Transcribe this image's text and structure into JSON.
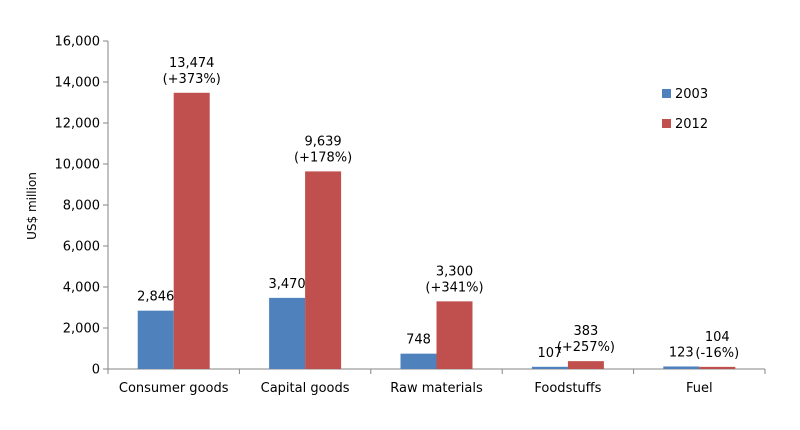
{
  "chart_data": {
    "type": "bar",
    "categories": [
      "Consumer goods",
      "Capital goods",
      "Raw materials",
      "Foodstuffs",
      "Fuel"
    ],
    "series": [
      {
        "name": "2003",
        "color": "#4F81BD",
        "values": [
          2846,
          3470,
          748,
          107,
          123
        ],
        "labels": [
          "2,846",
          "3,470",
          "748",
          "107",
          "123"
        ]
      },
      {
        "name": "2012",
        "color": "#C0504D",
        "values": [
          13474,
          9639,
          3300,
          383,
          104
        ],
        "labels": [
          "13,474",
          "9,639",
          "3,300",
          "383",
          "104"
        ],
        "change_labels": [
          "(+373%)",
          "(+178%)",
          "(+341%)",
          "(+257%)",
          "(-16%)"
        ]
      }
    ],
    "ylabel": "US$ million",
    "xlabel": "",
    "ylim": [
      0,
      16000
    ],
    "yticks": [
      0,
      2000,
      4000,
      6000,
      8000,
      10000,
      12000,
      14000,
      16000
    ],
    "ytick_labels": [
      "0",
      "2,000",
      "4,000",
      "6,000",
      "8,000",
      "10,000",
      "12,000",
      "14,000",
      "16,000"
    ],
    "grid": false,
    "legend_position": "right"
  }
}
